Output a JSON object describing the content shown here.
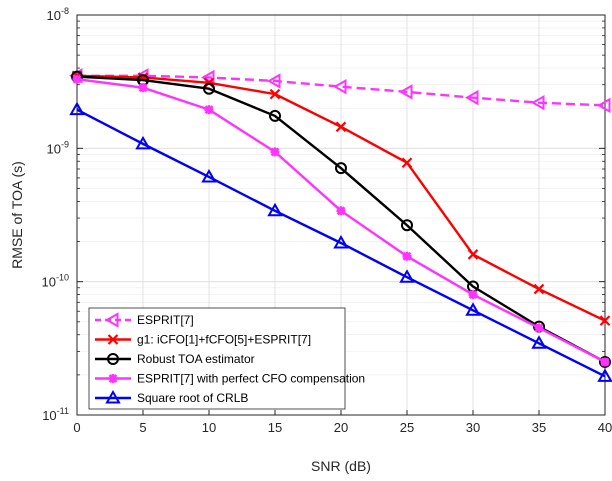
{
  "chart_data": {
    "type": "line",
    "xlabel": "SNR (dB)",
    "ylabel": "RMSE of TOA (s)",
    "yscale": "log",
    "xlim": [
      0,
      40
    ],
    "ylim": [
      1e-11,
      1e-08
    ],
    "grid": true,
    "legend_position": "bottom-left",
    "x": [
      0,
      5,
      10,
      15,
      20,
      25,
      30,
      35,
      40
    ],
    "x_ticks": [
      "0",
      "5",
      "10",
      "15",
      "20",
      "25",
      "30",
      "35",
      "40"
    ],
    "y_ticks": [
      {
        "base": "10",
        "exp": "-11",
        "value": 1e-11
      },
      {
        "base": "10",
        "exp": "-10",
        "value": 1e-10
      },
      {
        "base": "10",
        "exp": "-9",
        "value": 1e-09
      },
      {
        "base": "10",
        "exp": "-8",
        "value": 1e-08
      }
    ],
    "series": [
      {
        "name": "ESPRIT[7]",
        "color": "#ff33ff",
        "dash": "dashed",
        "marker": "triangle-left",
        "values": [
          3.5e-09,
          3.5e-09,
          3.4e-09,
          3.2e-09,
          2.9e-09,
          2.65e-09,
          2.4e-09,
          2.2e-09,
          2.1e-09
        ]
      },
      {
        "name": "g1: iCFO[1]+fCFO[5]+ESPRIT[7]",
        "color": "#ff0000",
        "dash": "solid",
        "marker": "x",
        "values": [
          3.5e-09,
          3.4e-09,
          3.1e-09,
          2.55e-09,
          1.45e-09,
          7.8e-10,
          1.6e-10,
          8.8e-11,
          5.1e-11
        ]
      },
      {
        "name": "Robust TOA estimator",
        "color": "#000000",
        "dash": "solid",
        "marker": "circle",
        "values": [
          3.45e-09,
          3.25e-09,
          2.8e-09,
          1.75e-09,
          7.1e-10,
          2.65e-10,
          9.2e-11,
          4.6e-11,
          2.5e-11
        ]
      },
      {
        "name": "ESPRIT[7] with perfect CFO compensation",
        "color": "#ff33ff",
        "dash": "solid",
        "marker": "star",
        "values": [
          3.3e-09,
          2.85e-09,
          1.95e-09,
          9.4e-10,
          3.4e-10,
          1.55e-10,
          8e-11,
          4.5e-11,
          2.5e-11
        ]
      },
      {
        "name": "Square root of CRLB",
        "color": "#0000ff",
        "dash": "solid",
        "marker": "triangle-up",
        "values": [
          1.95e-09,
          1.08e-09,
          6.1e-10,
          3.4e-10,
          1.95e-10,
          1.08e-10,
          6.1e-11,
          3.45e-11,
          1.95e-11
        ]
      }
    ]
  }
}
